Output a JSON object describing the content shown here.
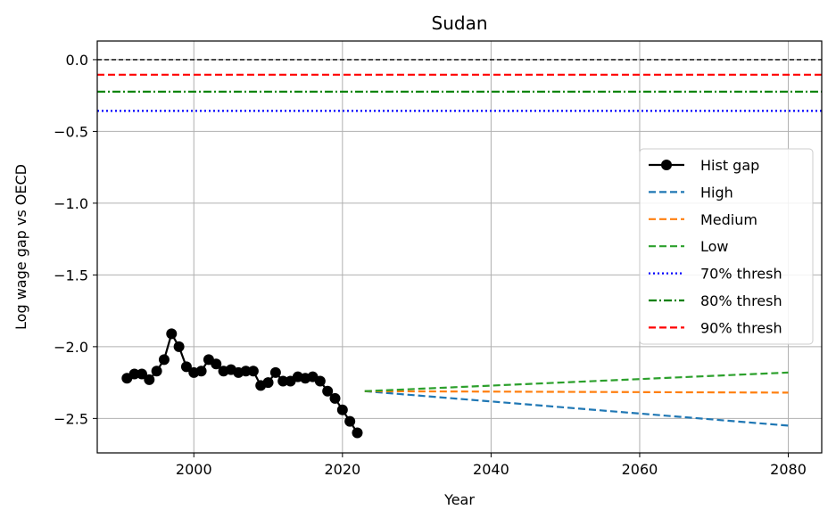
{
  "chart_data": {
    "type": "line",
    "title": "Sudan",
    "xlabel": "Year",
    "ylabel": "Log wage gap vs OECD",
    "xlim": [
      1987,
      2084.5
    ],
    "ylim": [
      -2.74,
      0.13
    ],
    "xticks": [
      2000,
      2020,
      2040,
      2060,
      2080
    ],
    "yticks": [
      0.0,
      -0.5,
      -1.0,
      -1.5,
      -2.0,
      -2.5
    ],
    "xtick_labels": [
      "2000",
      "2020",
      "2040",
      "2060",
      "2080"
    ],
    "ytick_labels": [
      "0.0",
      "−0.5",
      "−1.0",
      "−1.5",
      "−2.0",
      "−2.5"
    ],
    "grid": true,
    "legend_position": "center-right",
    "zero_line": {
      "y": 0.0,
      "color": "#000000"
    },
    "thresholds": [
      {
        "name": "70% thresh",
        "y": -0.357,
        "color": "#0000ff",
        "style": "dotted"
      },
      {
        "name": "80% thresh",
        "y": -0.223,
        "color": "#008000",
        "style": "dashdot"
      },
      {
        "name": "90% thresh",
        "y": -0.105,
        "color": "#ff0000",
        "style": "dashed"
      }
    ],
    "hist": {
      "name": "Hist gap",
      "color": "#000000",
      "x": [
        1991,
        1992,
        1993,
        1994,
        1995,
        1996,
        1997,
        1998,
        1999,
        2000,
        2001,
        2002,
        2003,
        2004,
        2005,
        2006,
        2007,
        2008,
        2009,
        2010,
        2011,
        2012,
        2013,
        2014,
        2015,
        2016,
        2017,
        2018,
        2019,
        2020,
        2021,
        2022
      ],
      "y": [
        -2.22,
        -2.19,
        -2.19,
        -2.23,
        -2.17,
        -2.09,
        -1.91,
        -2.0,
        -2.14,
        -2.18,
        -2.17,
        -2.09,
        -2.12,
        -2.17,
        -2.16,
        -2.18,
        -2.17,
        -2.17,
        -2.27,
        -2.25,
        -2.18,
        -2.24,
        -2.24,
        -2.21,
        -2.22,
        -2.21,
        -2.24,
        -2.31,
        -2.36,
        -2.44,
        -2.52,
        -2.6
      ]
    },
    "series": [
      {
        "name": "High",
        "color": "#1f77b4",
        "x": [
          2023,
          2080
        ],
        "y": [
          -2.31,
          -2.55
        ]
      },
      {
        "name": "Medium",
        "color": "#ff7f0e",
        "x": [
          2023,
          2080
        ],
        "y": [
          -2.31,
          -2.32
        ]
      },
      {
        "name": "Low",
        "color": "#2ca02c",
        "x": [
          2023,
          2080
        ],
        "y": [
          -2.31,
          -2.18
        ]
      }
    ]
  }
}
